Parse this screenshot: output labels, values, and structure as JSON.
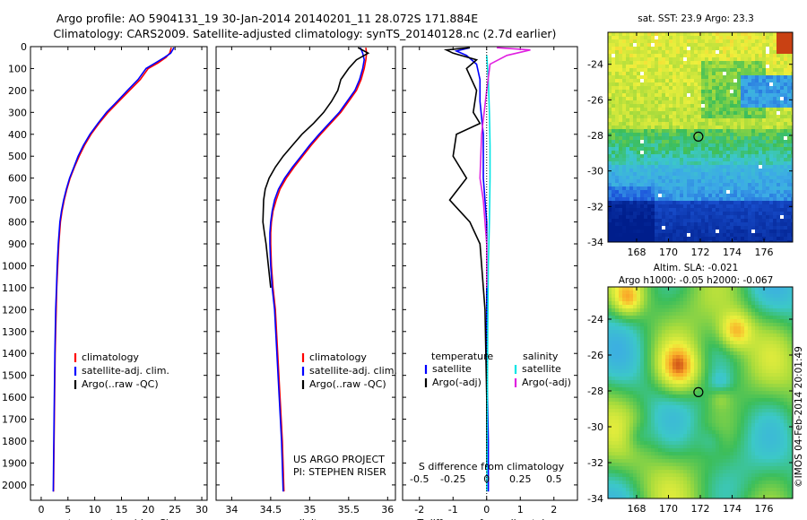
{
  "title": {
    "line1": "Argo profile: AO 5904131_19 30-Jan-2014 20140201_11 28.072S 171.884E",
    "line2": "Climatology: CARS2009. Satellite-adjusted climatology: synTS_20140128.nc (2.7d earlier)"
  },
  "colors": {
    "climatology": "#ff0000",
    "satellite": "#0000ff",
    "argo": "#000000",
    "cyan": "#00e5e5",
    "magenta": "#e020e0"
  },
  "chart_data": [
    {
      "type": "line",
      "id": "temperature",
      "xlabel": "temperature (deg C)",
      "xlim": [
        -2,
        31
      ],
      "ylim": [
        2070,
        0
      ],
      "xticks": [
        "0",
        "5",
        "10",
        "15",
        "20",
        "25",
        "30"
      ],
      "xtick_values": [
        0,
        5,
        10,
        15,
        20,
        25,
        30
      ],
      "yticks": [
        "0",
        "100",
        "200",
        "300",
        "400",
        "500",
        "600",
        "700",
        "800",
        "900",
        "1000",
        "1100",
        "1200",
        "1300",
        "1400",
        "1500",
        "1600",
        "1700",
        "1800",
        "1900",
        "2000"
      ],
      "ytick_values": [
        0,
        100,
        200,
        300,
        400,
        500,
        600,
        700,
        800,
        900,
        1000,
        1100,
        1200,
        1300,
        1400,
        1500,
        1600,
        1700,
        1800,
        1900,
        2000
      ],
      "legend": [
        "climatology",
        "satellite-adj. clim.",
        "Argo(..raw -QC)"
      ],
      "series": [
        {
          "name": "climatology",
          "color": "#ff0000",
          "x": [
            24.3,
            24.0,
            23.3,
            21.8,
            20.0,
            18.5,
            16.5,
            14.5,
            12.5,
            10.8,
            9.3,
            8.1,
            7.1,
            6.2,
            5.4,
            4.8,
            4.3,
            3.9,
            3.6,
            3.3,
            3.1,
            2.9,
            2.8,
            2.6,
            2.5,
            2.4,
            2.3
          ],
          "y": [
            5,
            30,
            50,
            75,
            100,
            150,
            200,
            250,
            300,
            350,
            400,
            450,
            500,
            550,
            600,
            650,
            700,
            750,
            800,
            900,
            1000,
            1100,
            1200,
            1400,
            1600,
            1800,
            2030
          ]
        },
        {
          "name": "satellite-adj. clim.",
          "color": "#0000ff",
          "x": [
            24.8,
            24.2,
            23.0,
            21.3,
            19.6,
            18.1,
            16.1,
            14.2,
            12.2,
            10.6,
            9.1,
            7.9,
            6.9,
            6.1,
            5.3,
            4.7,
            4.2,
            3.8,
            3.5,
            3.2,
            3.0,
            2.85,
            2.7,
            2.55,
            2.45,
            2.35,
            2.25
          ],
          "y": [
            5,
            30,
            50,
            75,
            100,
            150,
            200,
            250,
            300,
            350,
            400,
            450,
            500,
            550,
            600,
            650,
            700,
            750,
            800,
            900,
            1000,
            1100,
            1200,
            1400,
            1600,
            1800,
            2030
          ]
        }
      ]
    },
    {
      "type": "line",
      "id": "salinity",
      "xlabel": "salinity",
      "xlim": [
        33.8,
        36.1
      ],
      "ylim": [
        2070,
        0
      ],
      "xticks": [
        "34",
        "34.5",
        "35",
        "35.5",
        "36"
      ],
      "xtick_values": [
        34,
        34.5,
        35,
        35.5,
        36
      ],
      "legend": [
        "climatology",
        "satellite-adj. clim.",
        "Argo(..raw -QC)"
      ],
      "annotation": [
        "US ARGO PROJECT",
        "PI: STEPHEN RISER"
      ],
      "series": [
        {
          "name": "climatology",
          "color": "#ff0000",
          "x": [
            35.72,
            35.73,
            35.72,
            35.7,
            35.66,
            35.6,
            35.5,
            35.4,
            35.27,
            35.14,
            35.02,
            34.91,
            34.8,
            34.7,
            34.62,
            34.57,
            34.53,
            34.51,
            34.5,
            34.5,
            34.51,
            34.53,
            34.56,
            34.59,
            34.62,
            34.65,
            34.67
          ],
          "y": [
            5,
            30,
            60,
            100,
            150,
            200,
            250,
            300,
            350,
            400,
            450,
            500,
            550,
            600,
            650,
            700,
            750,
            800,
            850,
            900,
            1000,
            1100,
            1200,
            1400,
            1600,
            1800,
            2030
          ]
        },
        {
          "name": "satellite-adj. clim.",
          "color": "#0000ff",
          "x": [
            35.65,
            35.68,
            35.7,
            35.68,
            35.64,
            35.58,
            35.48,
            35.38,
            35.25,
            35.12,
            35.0,
            34.89,
            34.78,
            34.68,
            34.6,
            34.55,
            34.52,
            34.5,
            34.49,
            34.49,
            34.5,
            34.52,
            34.55,
            34.58,
            34.61,
            34.64,
            34.66
          ],
          "y": [
            5,
            30,
            60,
            100,
            150,
            200,
            250,
            300,
            350,
            400,
            450,
            500,
            550,
            600,
            650,
            700,
            750,
            800,
            850,
            900,
            1000,
            1100,
            1200,
            1400,
            1600,
            1800,
            2030
          ]
        },
        {
          "name": "Argo",
          "color": "#000000",
          "x": [
            35.62,
            35.75,
            35.6,
            35.5,
            35.4,
            35.36,
            35.28,
            35.18,
            35.05,
            34.9,
            34.78,
            34.66,
            34.56,
            34.48,
            34.43,
            34.41,
            34.4,
            34.42,
            34.44,
            34.47,
            34.5
          ],
          "y": [
            5,
            30,
            60,
            100,
            150,
            200,
            250,
            300,
            350,
            400,
            450,
            500,
            550,
            600,
            650,
            700,
            800,
            850,
            900,
            1000,
            1100
          ]
        }
      ]
    },
    {
      "type": "line",
      "id": "difference",
      "xlabel": "T difference from climatology",
      "xlabel_top": "S difference from climatology",
      "xlim": [
        -2.5,
        2.7
      ],
      "ylim": [
        2070,
        0
      ],
      "xticks": [
        "-2",
        "-1",
        "0",
        "1",
        "2"
      ],
      "xtick_values": [
        -2,
        -1,
        0,
        1,
        2
      ],
      "xticks_s": [
        "-0.5",
        "-0.25",
        "0",
        "0.25",
        "0.5"
      ],
      "xtick_s_values": [
        -0.5,
        -0.25,
        0,
        0.25,
        0.5
      ],
      "legend_headers": [
        "temperature",
        "salinity"
      ],
      "legend": [
        "satellite",
        "Argo(-adj)",
        "satellite",
        "Argo(-adj)"
      ],
      "series": [
        {
          "name": "T satellite",
          "color": "#0000ff",
          "x": [
            -0.5,
            -0.9,
            -0.6,
            -0.3,
            -0.2,
            -0.2,
            -0.1,
            -0.1,
            0,
            0,
            0,
            0.05,
            0.05
          ],
          "y": [
            5,
            20,
            40,
            80,
            150,
            250,
            400,
            600,
            800,
            1000,
            1400,
            1800,
            2030
          ]
        },
        {
          "name": "T Argo(-adj)",
          "color": "#000000",
          "x": [
            -0.5,
            -1.2,
            -1.0,
            -0.3,
            -0.6,
            -0.3,
            -0.4,
            -0.2,
            -0.9,
            -1.0,
            -0.6,
            -1.1,
            -0.5,
            -0.2,
            -0.05,
            0,
            0
          ],
          "y": [
            5,
            15,
            30,
            60,
            100,
            200,
            300,
            350,
            400,
            500,
            600,
            700,
            800,
            900,
            1200,
            1600,
            1920
          ]
        },
        {
          "name": "S satellite",
          "color": "#00e5e5",
          "x": [
            0.0,
            0.05,
            0.08,
            0.1,
            0.1,
            0.08,
            0.05,
            0.03,
            0.02,
            0.0
          ],
          "y": [
            40,
            150,
            300,
            450,
            600,
            800,
            1000,
            1300,
            1700,
            2030
          ]
        },
        {
          "name": "S Argo(-adj)",
          "color": "#e020e0",
          "x": [
            0.3,
            1.3,
            0.6,
            0.1,
            0.0,
            -0.15,
            -0.2,
            -0.1,
            -0.05,
            0,
            0
          ],
          "y": [
            5,
            15,
            40,
            80,
            200,
            400,
            600,
            700,
            800,
            900,
            1100
          ]
        }
      ]
    },
    {
      "type": "heatmap",
      "id": "sst-map",
      "title": "sat. SST: 23.9 Argo: 23.3",
      "xticks": [
        "168",
        "170",
        "172",
        "174",
        "176"
      ],
      "xtick_values": [
        168,
        170,
        172,
        174,
        176
      ],
      "yticks": [
        "-24",
        "-26",
        "-28",
        "-30",
        "-32",
        "-34"
      ],
      "ytick_values": [
        -24,
        -26,
        -28,
        -30,
        -32,
        -34
      ],
      "xlim": [
        166.2,
        177.8
      ],
      "ylim": [
        -34,
        -22.2
      ],
      "marker": [
        171.88,
        -28.07
      ]
    },
    {
      "type": "heatmap",
      "id": "sla-map",
      "title": "Altim. SLA: -0.021",
      "subtitle": "Argo h1000: -0.05 h2000: -0.067",
      "xticks": [
        "168",
        "170",
        "172",
        "174",
        "176"
      ],
      "xtick_values": [
        168,
        170,
        172,
        174,
        176
      ],
      "yticks": [
        "-24",
        "-26",
        "-28",
        "-30",
        "-32",
        "-34"
      ],
      "ytick_values": [
        -24,
        -26,
        -28,
        -30,
        -32,
        -34
      ],
      "xlim": [
        166.2,
        177.8
      ],
      "ylim": [
        -34,
        -22.2
      ],
      "marker": [
        171.88,
        -28.07
      ]
    }
  ],
  "footer_vertical": "©IMOS 04-Feb-2014 20:01:49"
}
